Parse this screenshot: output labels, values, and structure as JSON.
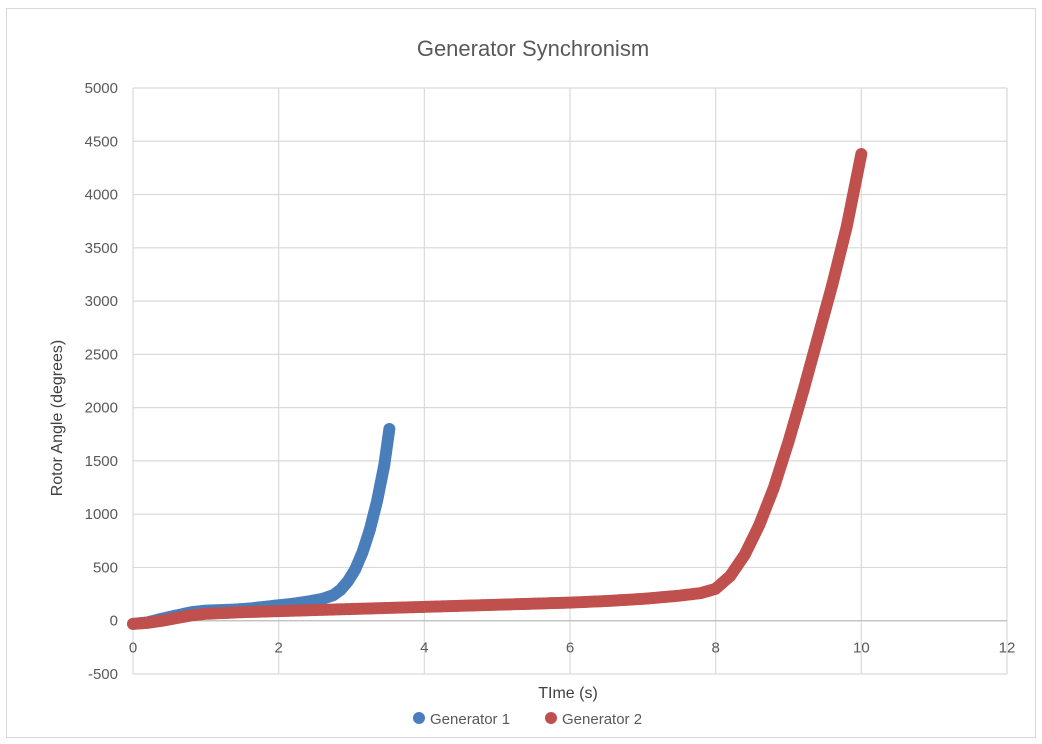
{
  "chart_data": {
    "type": "scatter",
    "title": "Generator Synchronism",
    "xlabel": "TIme (s)",
    "ylabel": "Rotor Angle (degrees)",
    "xlim": [
      0,
      12
    ],
    "ylim": [
      -500,
      5000
    ],
    "x_ticks": [
      "0",
      "2",
      "4",
      "6",
      "8",
      "10",
      "12"
    ],
    "y_ticks": [
      "-500",
      "0",
      "500",
      "1000",
      "1500",
      "2000",
      "2500",
      "3000",
      "3500",
      "4000",
      "4500",
      "5000"
    ],
    "grid": true,
    "legend_position": "bottom",
    "series": [
      {
        "name": "Generator 1",
        "color": "#4a7ebb",
        "points": [
          [
            0,
            -30
          ],
          [
            0.2,
            -15
          ],
          [
            0.4,
            20
          ],
          [
            0.6,
            50
          ],
          [
            0.8,
            80
          ],
          [
            1.0,
            95
          ],
          [
            1.2,
            100
          ],
          [
            1.4,
            105
          ],
          [
            1.6,
            115
          ],
          [
            1.8,
            130
          ],
          [
            2.0,
            145
          ],
          [
            2.2,
            160
          ],
          [
            2.4,
            180
          ],
          [
            2.6,
            205
          ],
          [
            2.75,
            240
          ],
          [
            2.85,
            290
          ],
          [
            2.95,
            370
          ],
          [
            3.05,
            480
          ],
          [
            3.15,
            640
          ],
          [
            3.25,
            850
          ],
          [
            3.35,
            1120
          ],
          [
            3.45,
            1460
          ],
          [
            3.52,
            1800
          ]
        ]
      },
      {
        "name": "Generator 2",
        "color": "#c0504d",
        "points": [
          [
            0,
            -30
          ],
          [
            0.2,
            -20
          ],
          [
            0.4,
            0
          ],
          [
            0.6,
            25
          ],
          [
            0.8,
            50
          ],
          [
            1.0,
            65
          ],
          [
            1.5,
            80
          ],
          [
            2.0,
            90
          ],
          [
            2.5,
            100
          ],
          [
            3.0,
            110
          ],
          [
            3.5,
            120
          ],
          [
            4.0,
            130
          ],
          [
            4.5,
            140
          ],
          [
            5.0,
            150
          ],
          [
            5.5,
            160
          ],
          [
            6.0,
            170
          ],
          [
            6.5,
            185
          ],
          [
            7.0,
            205
          ],
          [
            7.5,
            235
          ],
          [
            7.8,
            260
          ],
          [
            8.0,
            300
          ],
          [
            8.2,
            420
          ],
          [
            8.4,
            620
          ],
          [
            8.6,
            900
          ],
          [
            8.8,
            1250
          ],
          [
            9.0,
            1680
          ],
          [
            9.2,
            2150
          ],
          [
            9.4,
            2650
          ],
          [
            9.6,
            3150
          ],
          [
            9.8,
            3700
          ],
          [
            10.0,
            4380
          ]
        ]
      }
    ]
  }
}
